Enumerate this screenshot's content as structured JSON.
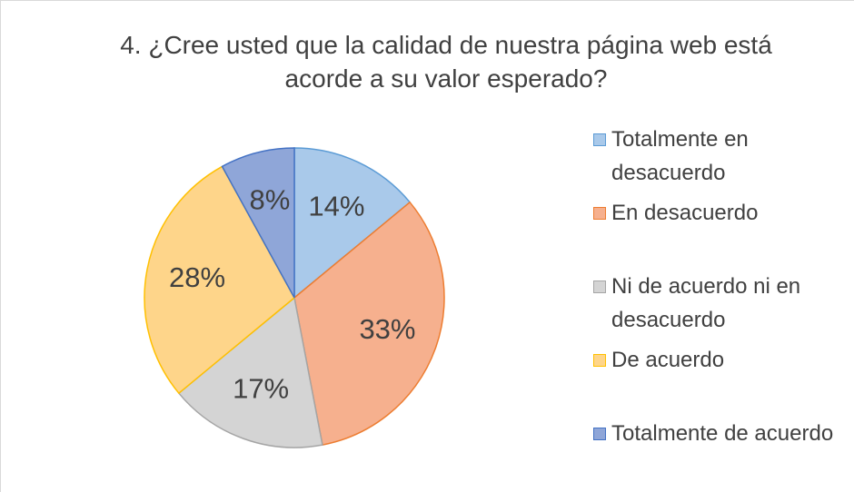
{
  "chart_data": {
    "type": "pie",
    "title": "4. ¿Cree usted que la calidad de nuestra página web está acorde a su valor esperado?",
    "categories": [
      "Totalmente en desacuerdo",
      "En desacuerdo",
      "Ni de acuerdo ni en desacuerdo",
      "De acuerdo",
      "Totalmente de acuerdo"
    ],
    "values": [
      14,
      33,
      17,
      28,
      8
    ],
    "value_labels": [
      "14%",
      "33%",
      "17%",
      "28%",
      "8%"
    ],
    "colors": [
      "#a9c9ea",
      "#f6b08e",
      "#d4d4d4",
      "#fed58a",
      "#8fa6d8"
    ],
    "edge_colors": [
      "#5b9bd5",
      "#ed7d31",
      "#a5a5a5",
      "#ffc000",
      "#4472c4"
    ],
    "legend": "right"
  }
}
